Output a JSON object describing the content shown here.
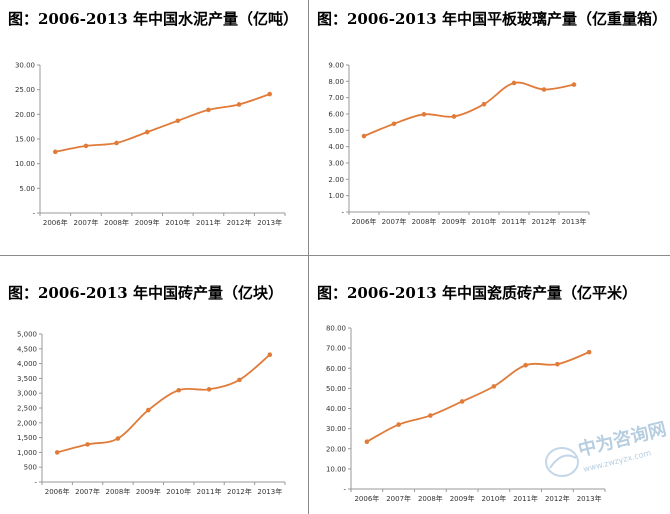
{
  "chart_data": [
    {
      "type": "line",
      "title": "图：2006-2013 年中国水泥产量（亿吨）",
      "categories": [
        "2006年",
        "2007年",
        "2008年",
        "2009年",
        "2010年",
        "2011年",
        "2012年",
        "2013年"
      ],
      "values": [
        12.4,
        13.6,
        14.2,
        16.4,
        18.7,
        20.9,
        22.0,
        24.1
      ],
      "ylim": [
        0,
        30
      ],
      "yticks": [
        "-",
        "5.00",
        "10.00",
        "15.00",
        "20.00",
        "25.00",
        "30.00"
      ],
      "grid": false,
      "color": "#e07b39"
    },
    {
      "type": "line",
      "title": "图：2006-2013 年中国平板玻璃产量（亿重量箱）",
      "categories": [
        "2006年",
        "2007年",
        "2008年",
        "2009年",
        "2010年",
        "2011年",
        "2012年",
        "2013年"
      ],
      "values": [
        4.65,
        5.4,
        5.98,
        5.85,
        6.6,
        7.9,
        7.5,
        7.8
      ],
      "ylim": [
        0,
        9
      ],
      "yticks": [
        "-",
        "1.00",
        "2.00",
        "3.00",
        "4.00",
        "5.00",
        "6.00",
        "7.00",
        "8.00",
        "9.00"
      ],
      "grid": false,
      "color": "#e07b39"
    },
    {
      "type": "line",
      "title": "图：2006-2013 年中国砖产量（亿块）",
      "categories": [
        "2006年",
        "2007年",
        "2008年",
        "2009年",
        "2010年",
        "2011年",
        "2012年",
        "2013年"
      ],
      "values": [
        1000,
        1270,
        1470,
        2430,
        3100,
        3130,
        3450,
        4300
      ],
      "ylim": [
        0,
        5000
      ],
      "yticks": [
        "-",
        "500",
        "1,000",
        "1,500",
        "2,000",
        "2,500",
        "3,000",
        "3,500",
        "4,000",
        "4,500",
        "5,000"
      ],
      "grid": false,
      "color": "#e07b39"
    },
    {
      "type": "line",
      "title": "图：2006-2013  年中国瓷质砖产量（亿平米）",
      "categories": [
        "2006年",
        "2007年",
        "2008年",
        "2009年",
        "2010年",
        "2011年",
        "2012年",
        "2013年"
      ],
      "values": [
        23.5,
        32.0,
        36.5,
        43.5,
        51.0,
        61.5,
        62.0,
        68.0
      ],
      "ylim": [
        0,
        80
      ],
      "yticks": [
        "-",
        "10.00",
        "20.00",
        "30.00",
        "40.00",
        "50.00",
        "60.00",
        "70.00",
        "80.00"
      ],
      "grid": false,
      "color": "#e07b39"
    }
  ],
  "watermark": {
    "text": "中为咨询网",
    "url": "www.zwzyzx.com",
    "color": "#7da6c8"
  }
}
